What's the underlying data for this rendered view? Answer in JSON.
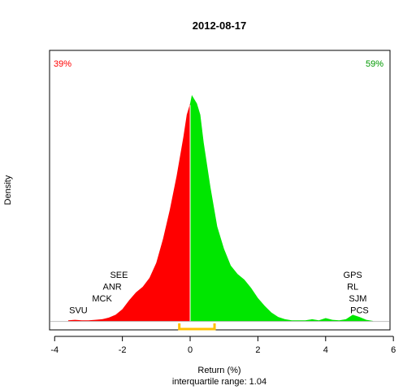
{
  "chart_data": {
    "type": "area",
    "title": "2012-08-17",
    "xlabel": "Return (%)",
    "subtitle": "interquartile range: 1.04",
    "ylabel": "Density",
    "xlim": [
      -4.15,
      5.9
    ],
    "ylim": [
      -0.015,
      0.485
    ],
    "xticks": [
      "-4",
      "-2",
      "0",
      "2",
      "4",
      "6"
    ],
    "split_at": 0,
    "colors": {
      "negative": "#ff0000",
      "positive": "#00e600",
      "iqr": "#ffc000",
      "baseline": "#bebebe"
    },
    "pct_negative": "39%",
    "pct_positive": "59%",
    "iqr": [
      -0.32,
      0.72
    ],
    "density": {
      "x": [
        -3.6,
        -3.4,
        -3.2,
        -3.0,
        -2.8,
        -2.6,
        -2.4,
        -2.2,
        -2.0,
        -1.8,
        -1.6,
        -1.4,
        -1.2,
        -1.0,
        -0.8,
        -0.6,
        -0.4,
        -0.2,
        -0.1,
        0.0,
        0.05,
        0.1,
        0.2,
        0.3,
        0.4,
        0.6,
        0.8,
        1.0,
        1.2,
        1.4,
        1.6,
        1.8,
        2.0,
        2.2,
        2.4,
        2.6,
        2.8,
        3.0,
        3.2,
        3.4,
        3.6,
        3.8,
        4.0,
        4.2,
        4.4,
        4.6,
        4.8,
        5.0,
        5.2,
        5.4
      ],
      "y": [
        0.002,
        0.003,
        0.002,
        0.002,
        0.003,
        0.004,
        0.007,
        0.012,
        0.022,
        0.038,
        0.052,
        0.062,
        0.078,
        0.105,
        0.148,
        0.2,
        0.26,
        0.33,
        0.37,
        0.39,
        0.405,
        0.4,
        0.39,
        0.37,
        0.32,
        0.24,
        0.17,
        0.13,
        0.1,
        0.085,
        0.075,
        0.06,
        0.042,
        0.028,
        0.016,
        0.008,
        0.004,
        0.002,
        0.002,
        0.002,
        0.004,
        0.002,
        0.006,
        0.003,
        0.002,
        0.004,
        0.012,
        0.008,
        0.003,
        0.001
      ]
    },
    "annotations_left": [
      {
        "label": "SEE",
        "x": -2.1,
        "y": 0.078
      },
      {
        "label": "ANR",
        "x": -2.3,
        "y": 0.057
      },
      {
        "label": "MCK",
        "x": -2.6,
        "y": 0.036
      },
      {
        "label": "SVU",
        "x": -3.3,
        "y": 0.015
      }
    ],
    "annotations_right": [
      {
        "label": "GPS",
        "x": 4.8,
        "y": 0.078
      },
      {
        "label": "RL",
        "x": 4.8,
        "y": 0.057
      },
      {
        "label": "SJM",
        "x": 4.95,
        "y": 0.036
      },
      {
        "label": "PCS",
        "x": 5.0,
        "y": 0.015
      }
    ]
  }
}
